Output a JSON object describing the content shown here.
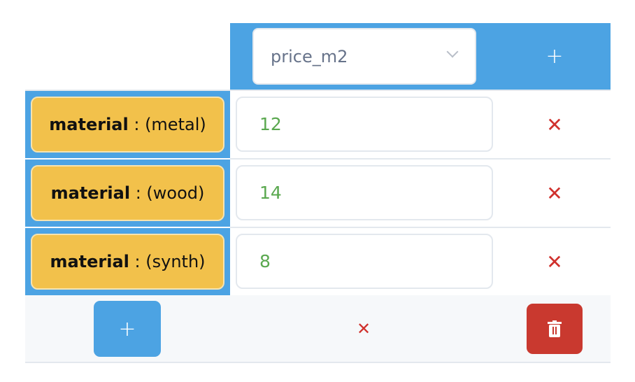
{
  "header": {
    "column_select": {
      "value": "price_m2"
    },
    "add_column_icon": "plus-icon"
  },
  "rows": [
    {
      "key": "material",
      "sep": " : ",
      "value": "(metal)",
      "amount": "12"
    },
    {
      "key": "material",
      "sep": " : ",
      "value": "(wood)",
      "amount": "14"
    },
    {
      "key": "material",
      "sep": " : ",
      "value": "(synth)",
      "amount": "8"
    }
  ],
  "icons": {
    "remove": "✕",
    "add": "+"
  },
  "colors": {
    "header": "#4ca3e3",
    "badge": "#f2c14b",
    "value": "#5aa84f",
    "remove": "#d0312d",
    "delete": "#c9392f"
  }
}
